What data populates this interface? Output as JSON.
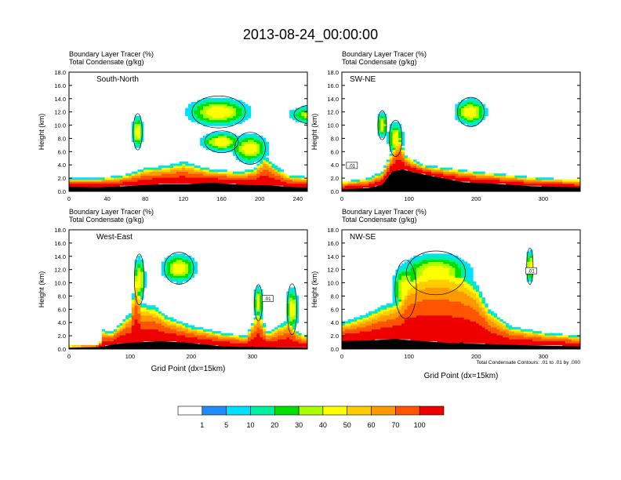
{
  "title": "2013-08-24_00:00:00",
  "chart_data": [
    {
      "type": "heatmap",
      "label": "South-North",
      "header_line1": "Boundary Layer Tracer   (%)",
      "header_line2": "Total Condensate   (g/kg)",
      "ylabel": "Height (km)",
      "xlabel": "",
      "xlim": [
        0,
        250
      ],
      "xticks": [
        "0",
        "40",
        "80",
        "120",
        "160",
        "200",
        "240"
      ],
      "xtick_values": [
        0,
        40,
        80,
        120,
        160,
        200,
        240
      ],
      "ylim": [
        0,
        18
      ],
      "yticks": [
        "0.0",
        "2.0",
        "4.0",
        "6.0",
        "8.0",
        "10.0",
        "12.0",
        "14.0",
        "16.0",
        "18.0"
      ],
      "contour_label": "",
      "surface": [
        [
          0,
          0.7
        ],
        [
          30,
          0.6
        ],
        [
          60,
          0.8
        ],
        [
          100,
          1.1
        ],
        [
          125,
          1.1
        ],
        [
          150,
          1.3
        ],
        [
          180,
          1.0
        ],
        [
          210,
          0.9
        ],
        [
          240,
          0.6
        ],
        [
          250,
          0.6
        ]
      ],
      "bl_top": [
        [
          0,
          2.0
        ],
        [
          30,
          2.0
        ],
        [
          60,
          2.5
        ],
        [
          80,
          3.6
        ],
        [
          100,
          3.8
        ],
        [
          120,
          4.5
        ],
        [
          150,
          3.3
        ],
        [
          180,
          3.0
        ],
        [
          195,
          3.5
        ],
        [
          205,
          5.5
        ],
        [
          215,
          4.0
        ],
        [
          230,
          2.5
        ],
        [
          250,
          2.2
        ]
      ],
      "clouds": [
        [
          157,
          12,
          35,
          2.2
        ],
        [
          260,
          11.6,
          30,
          1.4
        ],
        [
          160,
          7.5,
          22,
          1.5
        ],
        [
          190,
          6.5,
          20,
          2.2
        ],
        [
          72,
          9,
          6,
          2.5
        ]
      ],
      "marker": [
        128,
        0.6
      ]
    },
    {
      "type": "heatmap",
      "label": "SW-NE",
      "header_line1": "Boundary Layer Tracer   (%)",
      "header_line2": "Total Condensate   (g/kg)",
      "ylabel": "Height (km)",
      "xlabel": "",
      "xlim": [
        0,
        355
      ],
      "xticks": [
        "0",
        "100",
        "200",
        "300"
      ],
      "xtick_values": [
        0,
        100,
        200,
        300
      ],
      "ylim": [
        0,
        18
      ],
      "yticks": [
        "0.0",
        "2.0",
        "4.0",
        "6.0",
        "8.0",
        "10.0",
        "12.0",
        "14.0",
        "16.0",
        "18.0"
      ],
      "contour_label": ".01",
      "surface": [
        [
          0,
          0.3
        ],
        [
          40,
          0.5
        ],
        [
          60,
          1.0
        ],
        [
          75,
          3.0
        ],
        [
          90,
          3.3
        ],
        [
          110,
          2.8
        ],
        [
          150,
          2.0
        ],
        [
          180,
          1.4
        ],
        [
          220,
          1.2
        ],
        [
          280,
          0.8
        ],
        [
          355,
          0.6
        ]
      ],
      "bl_top": [
        [
          0,
          1.5
        ],
        [
          40,
          2.0
        ],
        [
          60,
          3.0
        ],
        [
          75,
          6.0
        ],
        [
          85,
          8.5
        ],
        [
          95,
          5.5
        ],
        [
          120,
          4.0
        ],
        [
          160,
          3.5
        ],
        [
          200,
          3.0
        ],
        [
          250,
          2.5
        ],
        [
          300,
          2.0
        ],
        [
          355,
          1.8
        ]
      ],
      "clouds": [
        [
          192,
          12,
          25,
          2.0
        ],
        [
          80,
          8,
          12,
          2.5
        ],
        [
          60,
          10,
          8,
          2.0
        ]
      ],
      "marker": [
        178,
        0.6
      ]
    },
    {
      "type": "heatmap",
      "label": "West-East",
      "header_line1": "Boundary Layer Tracer   (%)",
      "header_line2": "Total Condensate   (g/kg)",
      "ylabel": "Height (km)",
      "xlabel": "Grid Point (dx=15km)",
      "xlim": [
        0,
        390
      ],
      "xticks": [
        "0",
        "100",
        "200",
        "300"
      ],
      "xtick_values": [
        0,
        100,
        200,
        300
      ],
      "ylim": [
        0,
        18
      ],
      "yticks": [
        "0.0",
        "2.0",
        "4.0",
        "6.0",
        "8.0",
        "10.0",
        "12.0",
        "14.0",
        "16.0",
        "18.0"
      ],
      "contour_label": ".01",
      "surface": [
        [
          0,
          0.2
        ],
        [
          50,
          0.3
        ],
        [
          80,
          0.8
        ],
        [
          110,
          1.0
        ],
        [
          150,
          1.2
        ],
        [
          200,
          0.9
        ],
        [
          250,
          0.4
        ],
        [
          300,
          0.3
        ],
        [
          390,
          0.2
        ]
      ],
      "bl_top": [
        [
          0,
          0.5
        ],
        [
          50,
          0.6
        ],
        [
          55,
          3.0
        ],
        [
          70,
          2.5
        ],
        [
          100,
          5.5
        ],
        [
          110,
          11.5
        ],
        [
          118,
          7.0
        ],
        [
          140,
          6.5
        ],
        [
          160,
          5.0
        ],
        [
          200,
          3.5
        ],
        [
          250,
          2.5
        ],
        [
          290,
          2.0
        ],
        [
          310,
          6.0
        ],
        [
          325,
          2.5
        ],
        [
          360,
          4.5
        ],
        [
          375,
          2.5
        ],
        [
          390,
          2.0
        ]
      ],
      "clouds": [
        [
          180,
          12.2,
          30,
          2.2
        ],
        [
          115,
          10.5,
          10,
          3.5
        ],
        [
          365,
          6,
          10,
          3.5
        ],
        [
          310,
          7,
          8,
          2.5
        ]
      ],
      "marker": [
        188,
        0.6
      ]
    },
    {
      "type": "heatmap",
      "label": "NW-SE",
      "header_line1": "Boundary Layer Tracer   (%)",
      "header_line2": "Total Condensate   (g/kg)",
      "ylabel": "Height (km)",
      "xlabel": "Grid Point (dx=15km)",
      "xlim": [
        0,
        355
      ],
      "xticks": [
        "0",
        "100",
        "200",
        "300"
      ],
      "xtick_values": [
        0,
        100,
        200,
        300
      ],
      "ylim": [
        0,
        18
      ],
      "yticks": [
        "0.0",
        "2.0",
        "4.0",
        "6.0",
        "8.0",
        "10.0",
        "12.0",
        "14.0",
        "16.0",
        "18.0"
      ],
      "contour_label": ".01",
      "footnote": "Total Condensate Contours: .01 to .01 by .000",
      "surface": [
        [
          0,
          1.2
        ],
        [
          40,
          1.3
        ],
        [
          80,
          1.5
        ],
        [
          120,
          1.2
        ],
        [
          160,
          0.9
        ],
        [
          200,
          0.8
        ],
        [
          260,
          0.6
        ],
        [
          300,
          0.5
        ],
        [
          355,
          0.4
        ]
      ],
      "bl_top": [
        [
          0,
          4.0
        ],
        [
          30,
          5.0
        ],
        [
          60,
          6.5
        ],
        [
          85,
          7.5
        ],
        [
          100,
          11.0
        ],
        [
          120,
          12.5
        ],
        [
          150,
          13.0
        ],
        [
          180,
          12.0
        ],
        [
          200,
          10.0
        ],
        [
          220,
          6.0
        ],
        [
          250,
          3.5
        ],
        [
          300,
          2.5
        ],
        [
          355,
          2.0
        ]
      ],
      "clouds": [
        [
          140,
          11.5,
          55,
          3.0
        ],
        [
          95,
          9,
          20,
          4.0
        ],
        [
          280,
          12.5,
          6,
          2.5
        ]
      ],
      "marker": [
        178,
        0.6
      ]
    }
  ],
  "colorbar": {
    "colors": [
      "#ffffff",
      "#1e8cff",
      "#00e0ff",
      "#00f0a0",
      "#00e000",
      "#a8ff00",
      "#ffff00",
      "#ffcc00",
      "#ff9900",
      "#ff5500",
      "#ee0000"
    ],
    "labels": [
      "1",
      "5",
      "10",
      "20",
      "30",
      "40",
      "50",
      "60",
      "70",
      "100"
    ]
  }
}
